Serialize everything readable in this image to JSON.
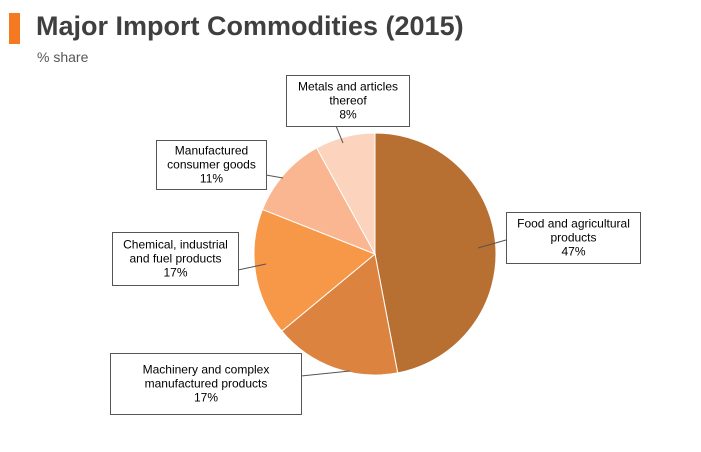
{
  "header": {
    "title": "Major Import Commodities (2015)",
    "subtitle": "% share",
    "accent_color": "#f47920"
  },
  "chart_data": {
    "type": "pie",
    "title": "Major Import Commodities (2015)",
    "subtitle": "% share",
    "start_angle_deg": 0,
    "direction": "clockwise",
    "slices": [
      {
        "label_lines": [
          "Food and agricultural",
          "products"
        ],
        "value": 47,
        "value_label": "47%",
        "color": "#b86f32"
      },
      {
        "label_lines": [
          "Machinery and complex",
          "manufactured products"
        ],
        "value": 17,
        "value_label": "17%",
        "color": "#dc843f"
      },
      {
        "label_lines": [
          "Chemical, industrial",
          "and fuel products"
        ],
        "value": 17,
        "value_label": "17%",
        "color": "#f79748"
      },
      {
        "label_lines": [
          "Manufactured",
          "consumer goods"
        ],
        "value": 11,
        "value_label": "11%",
        "color": "#f9b690"
      },
      {
        "label_lines": [
          "Metals and articles",
          "thereof"
        ],
        "value": 8,
        "value_label": "8%",
        "color": "#fcd3bd"
      }
    ]
  }
}
